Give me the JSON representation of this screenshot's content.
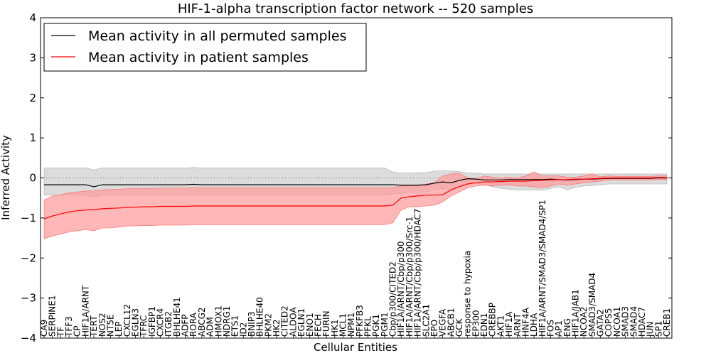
{
  "chart_data": {
    "type": "line",
    "title": "HIF-1-alpha transcription factor network -- 520 samples",
    "xlabel": "Cellular Entities",
    "ylabel": "Inferred Activity",
    "ylim": [
      -4,
      4
    ],
    "yticks": [
      -4,
      -3,
      -2,
      -1,
      0,
      1,
      2,
      3,
      4
    ],
    "ytick_labels": [
      "−4",
      "−3",
      "−2",
      "−1",
      "0",
      "1",
      "2",
      "3",
      "4"
    ],
    "legend_position": "top-left",
    "zero_line": "dotted",
    "categories": [
      "CA9",
      "SERPINE1",
      "TF",
      "TFF3",
      "CP",
      "HIF1A/ARNT",
      "TERT",
      "NOS2",
      "NT5E",
      "LEP",
      "CXCL12",
      "EGLN3",
      "TFRC",
      "IGFBP1",
      "CXCR4",
      "ITGB2",
      "BHLHE41",
      "ADFP",
      "RORA",
      "ABCG2",
      "ADM",
      "HMOX1",
      "NDRG1",
      "ETS1",
      "ID2",
      "BNIP3",
      "BHLHE40",
      "PKM2",
      "HK2",
      "CITED2",
      "ALDOA",
      "EGLN1",
      "ENO1",
      "FECH",
      "FURIN",
      "HK1",
      "MCL1",
      "NPM1",
      "PFKFB3",
      "PFKL",
      "PGK1",
      "PGM1",
      "Cbp/p300/CITED2",
      "HIF1A/ARNT/Cbp/p300",
      "HIF1A/ARNT/Cbp/p300/Src-1",
      "HIF1A/ARNT/Cbp/p300/HDAC7",
      "SLC2A1",
      "EPO",
      "VEGFA",
      "ABCB1",
      "GCK",
      "response to hypoxia",
      "EP300",
      "EDN1",
      "CREBBP",
      "AKT1",
      "HIF1A",
      "ARNT",
      "HNF4A",
      "LDHA",
      "HIF1A/ARNT/SMAD3/SMAD4/SP1",
      "FOS",
      "AP1",
      "ENG",
      "HIF1A/JAB1",
      "NCOA2",
      "SMAD3/SMAD4",
      "GATA2",
      "COPS5",
      "NCOA1",
      "SMAD3",
      "SMAD4",
      "HDAC7",
      "JUN",
      "SP1",
      "CREB1"
    ],
    "series": [
      {
        "name": "Mean activity in all permuted samples",
        "color": "#000000",
        "band_color": "#c0c0c0",
        "values": [
          -0.17,
          -0.17,
          -0.17,
          -0.17,
          -0.17,
          -0.17,
          -0.22,
          -0.17,
          -0.17,
          -0.17,
          -0.17,
          -0.17,
          -0.17,
          -0.17,
          -0.17,
          -0.17,
          -0.17,
          -0.17,
          -0.16,
          -0.17,
          -0.17,
          -0.17,
          -0.17,
          -0.17,
          -0.17,
          -0.17,
          -0.17,
          -0.17,
          -0.17,
          -0.17,
          -0.17,
          -0.17,
          -0.17,
          -0.17,
          -0.17,
          -0.17,
          -0.17,
          -0.17,
          -0.17,
          -0.17,
          -0.17,
          -0.17,
          -0.17,
          -0.18,
          -0.18,
          -0.18,
          -0.17,
          -0.13,
          -0.1,
          -0.12,
          -0.06,
          -0.02,
          -0.03,
          -0.05,
          -0.05,
          -0.05,
          -0.04,
          -0.04,
          -0.04,
          -0.04,
          -0.04,
          -0.03,
          -0.04,
          -0.05,
          -0.04,
          -0.03,
          -0.03,
          -0.02,
          -0.01,
          -0.01,
          -0.01,
          -0.01,
          -0.01,
          -0.01,
          0.0,
          0.0
        ],
        "lower": [
          -0.43,
          -0.43,
          -0.43,
          -0.43,
          -0.43,
          -0.43,
          -0.48,
          -0.43,
          -0.43,
          -0.43,
          -0.43,
          -0.43,
          -0.43,
          -0.43,
          -0.43,
          -0.43,
          -0.43,
          -0.43,
          -0.42,
          -0.43,
          -0.43,
          -0.43,
          -0.43,
          -0.43,
          -0.43,
          -0.43,
          -0.43,
          -0.43,
          -0.43,
          -0.43,
          -0.43,
          -0.43,
          -0.43,
          -0.43,
          -0.43,
          -0.43,
          -0.43,
          -0.43,
          -0.43,
          -0.43,
          -0.43,
          -0.43,
          -0.4,
          -0.38,
          -0.36,
          -0.36,
          -0.35,
          -0.3,
          -0.27,
          -0.29,
          -0.2,
          -0.12,
          -0.13,
          -0.17,
          -0.22,
          -0.26,
          -0.28,
          -0.3,
          -0.3,
          -0.3,
          -0.31,
          -0.26,
          -0.22,
          -0.3,
          -0.24,
          -0.2,
          -0.19,
          -0.17,
          -0.15,
          -0.15,
          -0.15,
          -0.15,
          -0.15,
          -0.15,
          -0.15,
          -0.15
        ],
        "upper": [
          0.25,
          0.25,
          0.25,
          0.25,
          0.25,
          0.25,
          0.2,
          0.25,
          0.25,
          0.25,
          0.25,
          0.25,
          0.25,
          0.25,
          0.25,
          0.25,
          0.25,
          0.25,
          0.26,
          0.25,
          0.25,
          0.25,
          0.25,
          0.25,
          0.25,
          0.25,
          0.25,
          0.25,
          0.25,
          0.25,
          0.25,
          0.25,
          0.25,
          0.25,
          0.25,
          0.25,
          0.25,
          0.25,
          0.25,
          0.25,
          0.25,
          0.25,
          0.15,
          0.12,
          0.12,
          0.13,
          0.13,
          0.17,
          0.18,
          0.17,
          0.16,
          0.12,
          0.12,
          0.1,
          0.1,
          0.1,
          0.1,
          0.1,
          0.1,
          0.1,
          0.1,
          0.1,
          0.1,
          0.1,
          0.1,
          0.1,
          0.1,
          0.1,
          0.1,
          0.1,
          0.1,
          0.1,
          0.1,
          0.1,
          0.1,
          0.1
        ]
      },
      {
        "name": "Mean activity in patient samples",
        "color": "#ff0000",
        "band_color": "#ff9999",
        "values": [
          -1.02,
          -0.95,
          -0.9,
          -0.85,
          -0.82,
          -0.8,
          -0.79,
          -0.77,
          -0.76,
          -0.75,
          -0.74,
          -0.73,
          -0.72,
          -0.72,
          -0.71,
          -0.71,
          -0.71,
          -0.71,
          -0.7,
          -0.7,
          -0.7,
          -0.7,
          -0.7,
          -0.7,
          -0.7,
          -0.7,
          -0.7,
          -0.7,
          -0.7,
          -0.7,
          -0.7,
          -0.7,
          -0.7,
          -0.7,
          -0.7,
          -0.7,
          -0.7,
          -0.7,
          -0.7,
          -0.7,
          -0.7,
          -0.7,
          -0.68,
          -0.5,
          -0.47,
          -0.45,
          -0.43,
          -0.43,
          -0.42,
          -0.3,
          -0.22,
          -0.15,
          -0.12,
          -0.1,
          -0.1,
          -0.09,
          -0.08,
          -0.08,
          -0.08,
          -0.07,
          -0.06,
          -0.05,
          -0.04,
          -0.04,
          -0.03,
          -0.03,
          -0.02,
          -0.01,
          0.0,
          0.0,
          0.0,
          0.0,
          0.0,
          0.0,
          0.01,
          0.01
        ],
        "lower": [
          -1.52,
          -1.45,
          -1.4,
          -1.35,
          -1.32,
          -1.29,
          -1.32,
          -1.25,
          -1.25,
          -1.23,
          -1.2,
          -1.2,
          -1.19,
          -1.19,
          -1.18,
          -1.18,
          -1.18,
          -1.18,
          -1.17,
          -1.17,
          -1.17,
          -1.17,
          -1.17,
          -1.17,
          -1.17,
          -1.17,
          -1.17,
          -1.17,
          -1.17,
          -1.17,
          -1.17,
          -1.17,
          -1.17,
          -1.17,
          -1.17,
          -1.17,
          -1.17,
          -1.17,
          -1.17,
          -1.17,
          -1.17,
          -1.17,
          -1.12,
          -0.8,
          -0.72,
          -0.72,
          -0.7,
          -0.68,
          -0.6,
          -0.45,
          -0.35,
          -0.25,
          -0.2,
          -0.18,
          -0.2,
          -0.18,
          -0.17,
          -0.2,
          -0.2,
          -0.22,
          -0.25,
          -0.2,
          -0.15,
          -0.18,
          -0.15,
          -0.12,
          -0.1,
          -0.08,
          -0.05,
          -0.05,
          -0.05,
          -0.05,
          -0.05,
          -0.05,
          -0.04,
          -0.04
        ],
        "upper": [
          -0.55,
          -0.45,
          -0.42,
          -0.37,
          -0.35,
          -0.33,
          -0.32,
          -0.3,
          -0.29,
          -0.28,
          -0.27,
          -0.27,
          -0.26,
          -0.26,
          -0.25,
          -0.25,
          -0.25,
          -0.25,
          -0.24,
          -0.24,
          -0.24,
          -0.24,
          -0.24,
          -0.24,
          -0.24,
          -0.24,
          -0.24,
          -0.24,
          -0.24,
          -0.24,
          -0.24,
          -0.24,
          -0.24,
          -0.24,
          -0.24,
          -0.24,
          -0.24,
          -0.24,
          -0.24,
          -0.24,
          -0.24,
          -0.24,
          -0.24,
          -0.2,
          -0.2,
          -0.2,
          -0.15,
          -0.12,
          0.05,
          0.1,
          0.12,
          0.0,
          -0.02,
          0.05,
          0.02,
          0.0,
          0.02,
          0.0,
          0.05,
          0.15,
          0.05,
          0.05,
          0.05,
          0.02,
          0.02,
          0.05,
          0.1,
          0.03,
          0.05,
          0.04,
          0.04,
          0.04,
          0.04,
          0.04,
          0.05,
          0.05
        ]
      }
    ]
  }
}
